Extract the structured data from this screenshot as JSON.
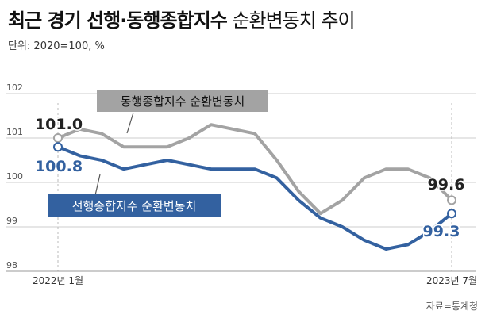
{
  "header": {
    "title_bold": "최근 경기 선행·동행종합지수",
    "title_light": " 순환변동치 추이",
    "unit": "단위: 2020=100, %"
  },
  "footer": {
    "source": "자료=통계청"
  },
  "colors": {
    "coincident": "#a3a3a3",
    "leading": "#3361a0",
    "grid": "#cccccc",
    "axis_text": "#555555"
  },
  "chart_data": {
    "type": "line",
    "title": "최근 경기 선행·동행종합지수 순환변동치 추이",
    "x": [
      "2022-01",
      "2022-02",
      "2022-03",
      "2022-04",
      "2022-05",
      "2022-06",
      "2022-07",
      "2022-08",
      "2022-09",
      "2022-10",
      "2022-11",
      "2022-12",
      "2023-01",
      "2023-02",
      "2023-03",
      "2023-04",
      "2023-05",
      "2023-06",
      "2023-07"
    ],
    "x_tick_labels": [
      "2022년 1월",
      "2023년 7월"
    ],
    "ylim": [
      98,
      102
    ],
    "y_ticks": [
      "98",
      "99",
      "100",
      "101",
      "102"
    ],
    "grid": true,
    "series": [
      {
        "name": "동행종합지수 순환변동치",
        "color": "#a3a3a3",
        "values": [
          101.0,
          101.2,
          101.1,
          100.8,
          100.8,
          100.8,
          101.0,
          101.3,
          101.2,
          101.1,
          100.5,
          99.8,
          99.3,
          99.6,
          100.1,
          100.3,
          100.3,
          100.1,
          99.6
        ],
        "start_label": "101.0",
        "end_label": "99.6"
      },
      {
        "name": "선행종합지수 순환변동치",
        "color": "#3361a0",
        "values": [
          100.8,
          100.6,
          100.5,
          100.3,
          100.4,
          100.5,
          100.4,
          100.3,
          100.3,
          100.3,
          100.1,
          99.6,
          99.2,
          99.0,
          98.7,
          98.5,
          98.6,
          98.9,
          99.3
        ],
        "start_label": "100.8",
        "end_label": "99.3"
      }
    ]
  }
}
